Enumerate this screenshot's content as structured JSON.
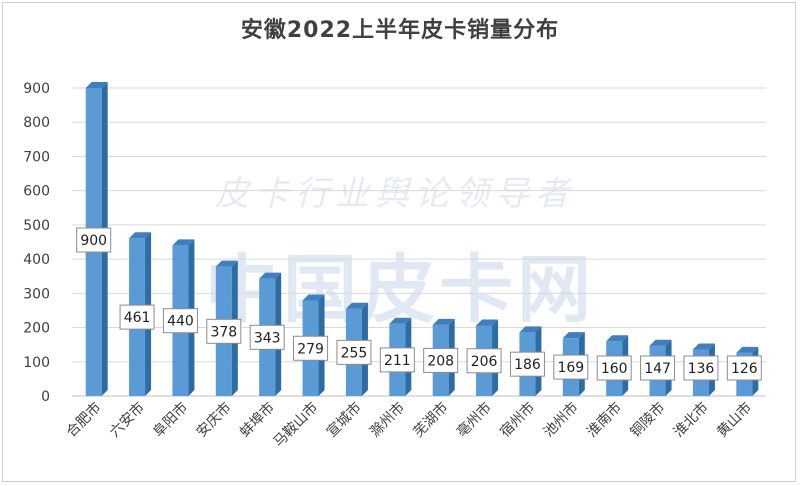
{
  "chart_data": {
    "type": "bar",
    "title": "安徽2022上半年皮卡销量分布",
    "categories": [
      "合肥市",
      "六安市",
      "阜阳市",
      "安庆市",
      "蚌埠市",
      "马鞍山市",
      "宣城市",
      "滁州市",
      "芜湖市",
      "亳州市",
      "宿州市",
      "池州市",
      "淮南市",
      "铜陵市",
      "淮北市",
      "黄山市"
    ],
    "values": [
      900,
      461,
      440,
      378,
      343,
      279,
      255,
      211,
      208,
      206,
      186,
      169,
      160,
      147,
      136,
      126
    ],
    "data_labels": [
      "900",
      "461",
      "440",
      "378",
      "343",
      "279",
      "255",
      "211",
      "208",
      "206",
      "186",
      "169",
      "160",
      "147",
      "136",
      "126"
    ],
    "ylim": [
      0,
      900
    ],
    "yticks": [
      0,
      100,
      200,
      300,
      400,
      500,
      600,
      700,
      800,
      900
    ],
    "xlabel": "",
    "ylabel": "",
    "grid": true,
    "legend": "none",
    "bar_color": "#5b9bd5",
    "bar_side_color": "#2e6ca4",
    "bar_top_color": "#3f7fbf"
  },
  "watermark": {
    "line1": "皮卡行业舆论领导者",
    "line2": "中国皮卡网"
  }
}
